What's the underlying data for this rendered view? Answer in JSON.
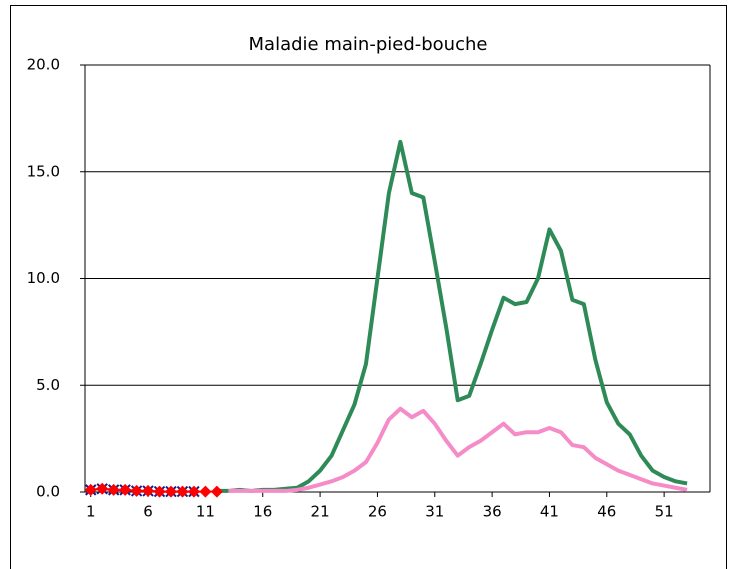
{
  "chart_data": {
    "type": "line",
    "title": "Maladie main-pied-bouche",
    "x": [
      1,
      2,
      3,
      4,
      5,
      6,
      7,
      8,
      9,
      10,
      11,
      12,
      13,
      14,
      15,
      16,
      17,
      18,
      19,
      20,
      21,
      22,
      23,
      24,
      25,
      26,
      27,
      28,
      29,
      30,
      31,
      32,
      33,
      34,
      35,
      36,
      37,
      38,
      39,
      40,
      41,
      42,
      43,
      44,
      45,
      46,
      47,
      48,
      49,
      50,
      51,
      52,
      53
    ],
    "xlim": [
      0.5,
      55
    ],
    "xticks": [
      1,
      6,
      11,
      16,
      21,
      26,
      31,
      36,
      41,
      46,
      51
    ],
    "ylim": [
      0,
      20
    ],
    "yticks": [
      {
        "value": 0,
        "label": "0.0"
      },
      {
        "value": 5,
        "label": "5.0"
      },
      {
        "value": 10,
        "label": "10.0"
      },
      {
        "value": 15,
        "label": "15.0"
      },
      {
        "value": 20,
        "label": "20.0"
      }
    ],
    "grid": true,
    "series": [
      {
        "color": "#2e8b57",
        "marker": "none",
        "values": [
          null,
          null,
          null,
          null,
          null,
          null,
          null,
          null,
          null,
          null,
          null,
          0.05,
          0.05,
          0.1,
          0.05,
          0.1,
          0.1,
          0.15,
          0.2,
          0.5,
          1.0,
          1.7,
          2.9,
          4.1,
          6.0,
          10.0,
          14.0,
          16.4,
          14.0,
          13.8,
          10.8,
          7.7,
          4.3,
          4.5,
          6.0,
          7.6,
          9.1,
          8.8,
          8.9,
          10.0,
          12.3,
          11.3,
          9.0,
          8.8,
          6.2,
          4.2,
          3.2,
          2.7,
          1.7,
          1.0,
          0.7,
          0.5,
          0.4
        ]
      },
      {
        "color": "#f58cc8",
        "marker": "none",
        "values": [
          null,
          null,
          null,
          null,
          null,
          null,
          null,
          null,
          null,
          null,
          null,
          null,
          0.05,
          0.05,
          0.05,
          0.05,
          0.05,
          0.05,
          0.1,
          0.2,
          0.35,
          0.5,
          0.7,
          1.0,
          1.4,
          2.3,
          3.4,
          3.9,
          3.5,
          3.8,
          3.2,
          2.4,
          1.7,
          2.1,
          2.4,
          2.8,
          3.2,
          2.7,
          2.8,
          2.8,
          3.0,
          2.8,
          2.2,
          2.1,
          1.6,
          1.3,
          1.0,
          0.8,
          0.6,
          0.4,
          0.3,
          0.2,
          0.1
        ]
      },
      {
        "color": "#1a1a8c",
        "marker": "x",
        "values": [
          0.1,
          0.15,
          0.1,
          0.1,
          0.05,
          0.05,
          0.02,
          0.02,
          0.02,
          0.02,
          null,
          null,
          null,
          null,
          null,
          null,
          null,
          null,
          null,
          null,
          null,
          null,
          null,
          null,
          null,
          null,
          null,
          null,
          null,
          null,
          null,
          null,
          null,
          null,
          null,
          null,
          null,
          null,
          null,
          null,
          null,
          null,
          null,
          null,
          null,
          null,
          null,
          null,
          null,
          null,
          null,
          null,
          null
        ]
      },
      {
        "color": "#ff0000",
        "marker": "diamond",
        "values": [
          0.1,
          0.15,
          0.1,
          0.1,
          0.05,
          0.05,
          0.02,
          0.02,
          0.02,
          0.02,
          0.02,
          0.02,
          null,
          null,
          null,
          null,
          null,
          null,
          null,
          null,
          null,
          null,
          null,
          null,
          null,
          null,
          null,
          null,
          null,
          null,
          null,
          null,
          null,
          null,
          null,
          null,
          null,
          null,
          null,
          null,
          null,
          null,
          null,
          null,
          null,
          null,
          null,
          null,
          null,
          null,
          null,
          null,
          null
        ]
      }
    ]
  }
}
